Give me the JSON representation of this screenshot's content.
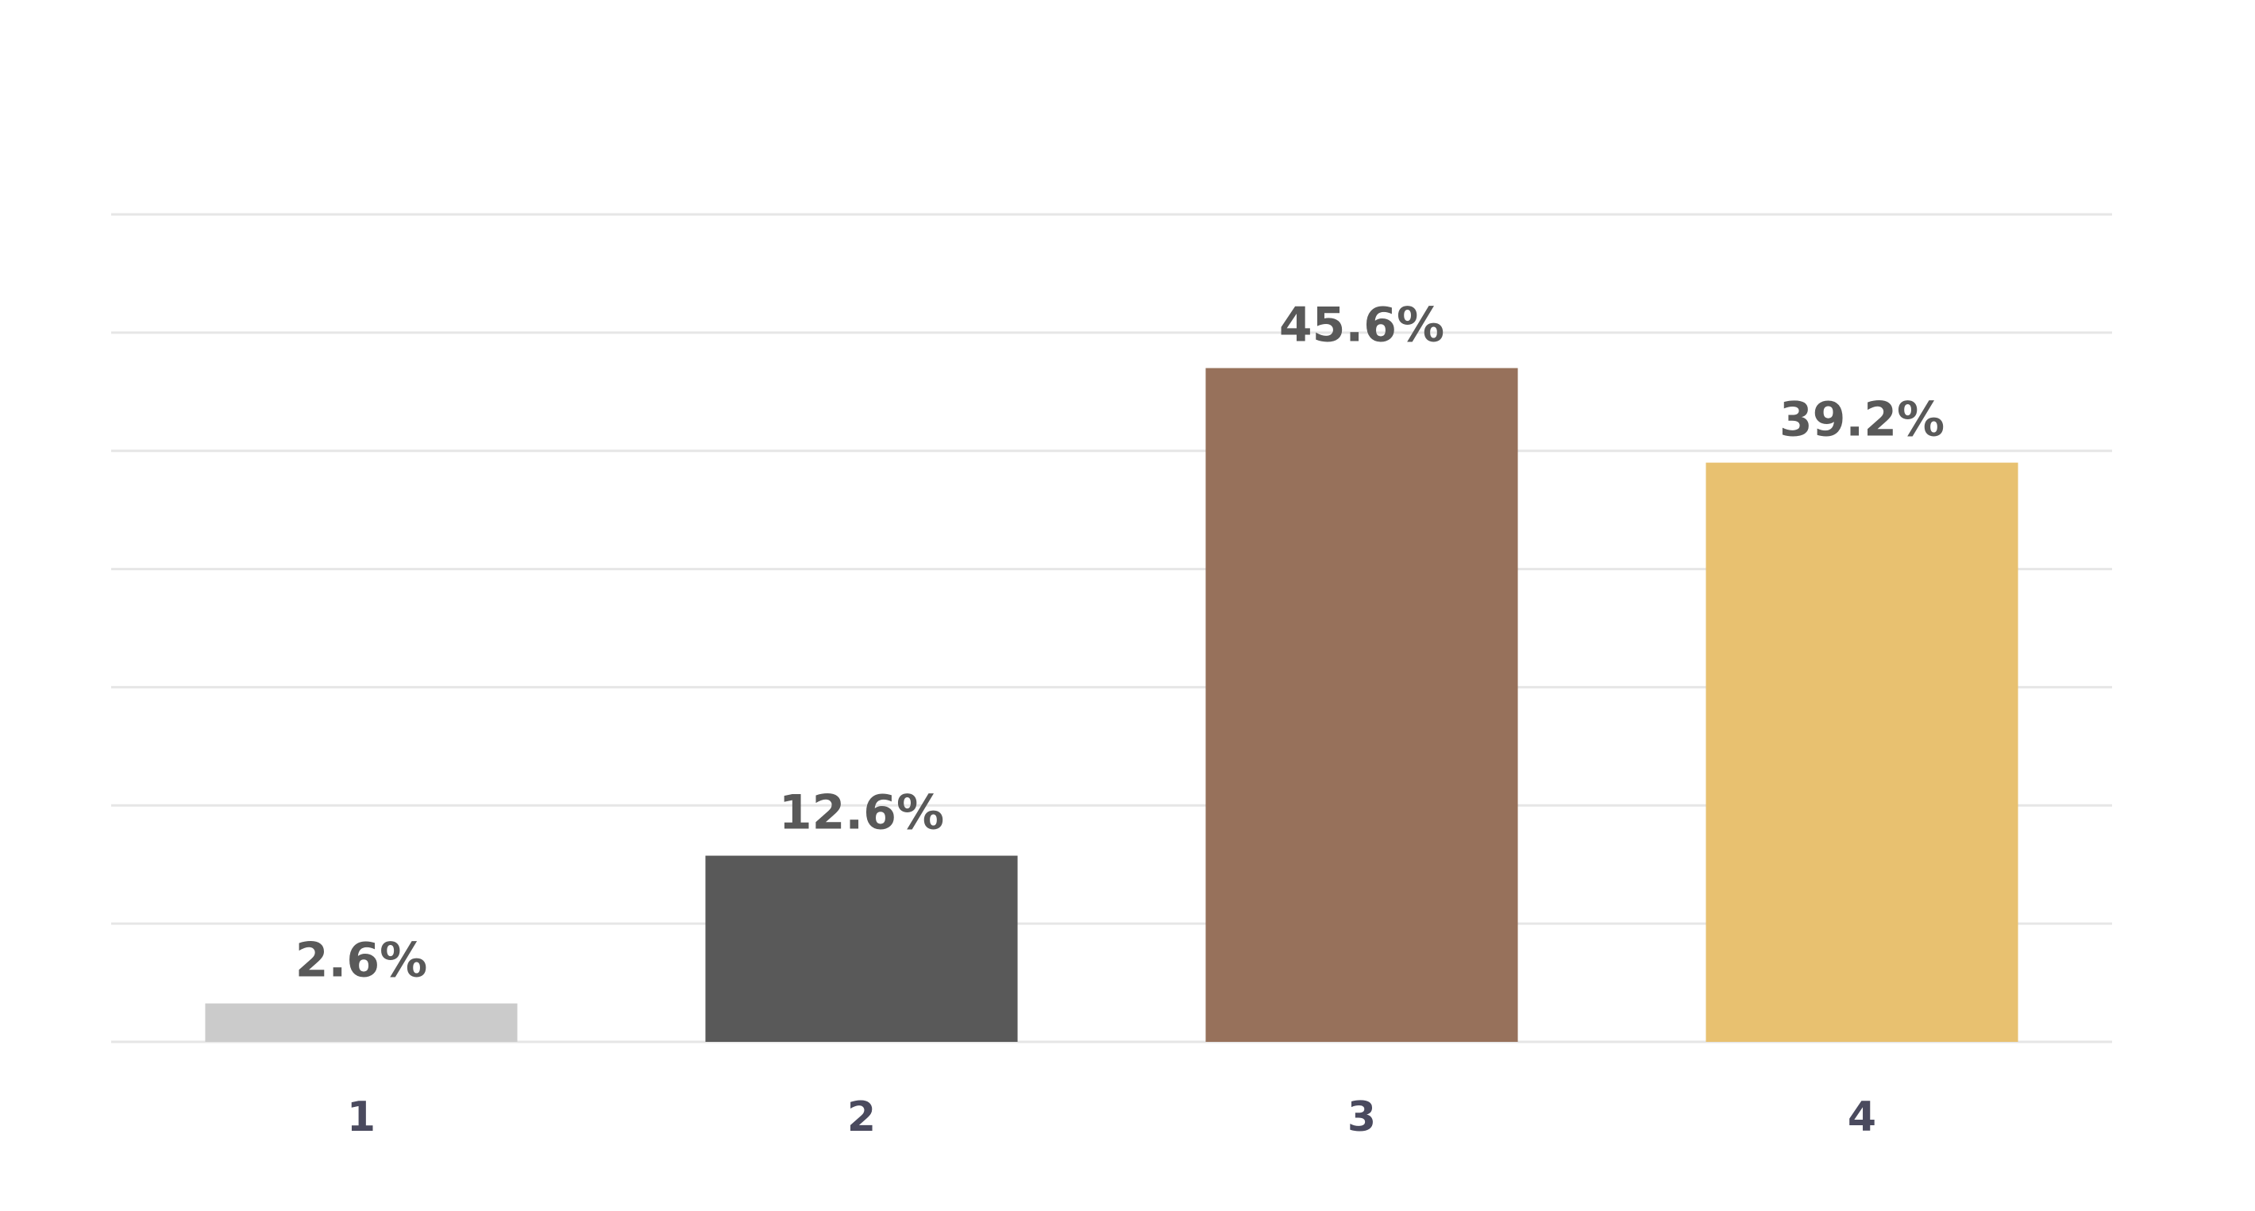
{
  "chart_data": {
    "type": "bar",
    "title": "",
    "xlabel": "",
    "ylabel": "",
    "categories": [
      "1",
      "2",
      "3",
      "4"
    ],
    "values": [
      2.6,
      12.6,
      45.6,
      39.2
    ],
    "data_labels": [
      "2.6%",
      "12.6%",
      "45.6%",
      "39.2%"
    ],
    "ylim": [
      0,
      56
    ],
    "grid": true,
    "legend": "none",
    "colors": [
      "#cbcbcb",
      "#595959",
      "#97715b",
      "#e8c170"
    ],
    "label_color": "#595959",
    "tick_color": "#4a4a5e",
    "grid_color": "#e6e6e6"
  }
}
